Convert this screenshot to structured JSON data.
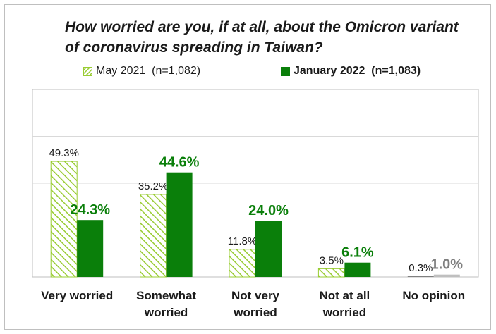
{
  "chart_data": {
    "type": "bar",
    "title": "How worried are you, if at all, about the Omicron variant of coronavirus spreading in Taiwan?",
    "categories": [
      "Very worried",
      "Somewhat worried",
      "Not very worried",
      "Not at all worried",
      "No opinion"
    ],
    "category_lines": [
      [
        "Very worried"
      ],
      [
        "Somewhat",
        "worried"
      ],
      [
        "Not very",
        "worried"
      ],
      [
        "Not at all",
        "worried"
      ],
      [
        "No opinion"
      ]
    ],
    "series": [
      {
        "name": "May 2021  (n=1,082)",
        "values": [
          49.3,
          35.2,
          11.8,
          3.5,
          0.3
        ],
        "labels": [
          "49.3%",
          "35.2%",
          "11.8%",
          "3.5%",
          "0.3%"
        ],
        "color": "#99cc33",
        "pattern": "hatched"
      },
      {
        "name": "January 2022  (n=1,083)",
        "values": [
          24.3,
          44.6,
          24.0,
          6.1,
          1.0
        ],
        "labels": [
          "24.3%",
          "44.6%",
          "24.0%",
          "6.1%",
          "1.0%"
        ],
        "color": "#0a7f0a",
        "pattern": "solid"
      }
    ],
    "special_colors": {
      "no_opinion": "#7f7f7f",
      "gridline": "#d9d9d9",
      "axis": "#bfbfbf"
    },
    "ylim": [
      0,
      80
    ],
    "grid": true,
    "legend_position": "top"
  }
}
